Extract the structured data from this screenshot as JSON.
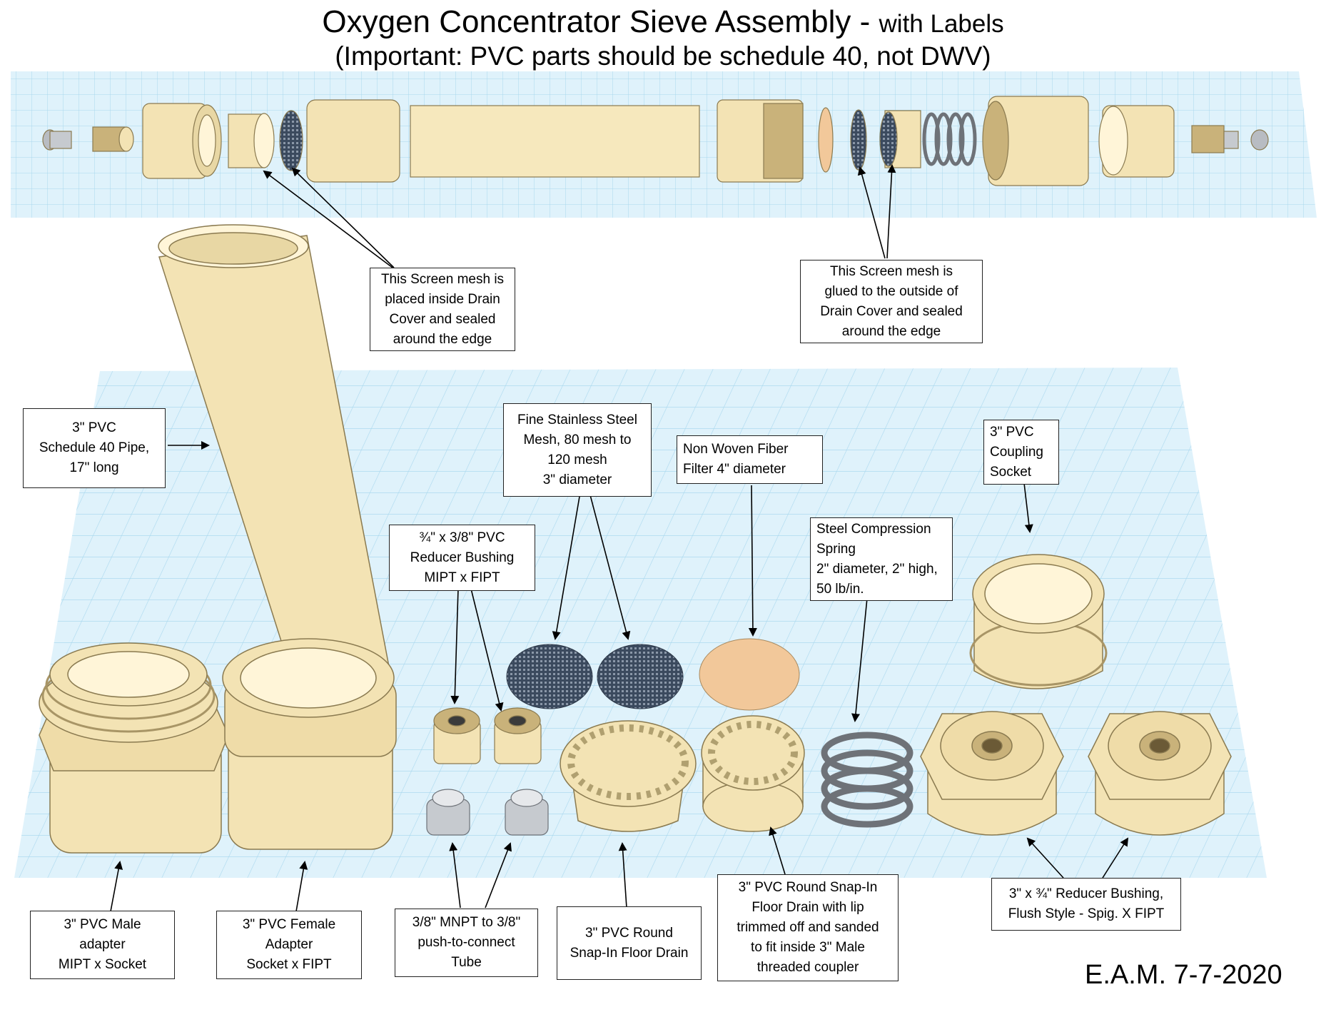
{
  "title": {
    "main": "Oxygen Concentrator Sieve Assembly -",
    "suffix": "with Labels",
    "subtitle": "(Important: PVC parts should be schedule 40, not DWV)"
  },
  "labels": {
    "screen_inside": "This Screen mesh is\nplaced inside Drain\nCover and sealed\naround the edge",
    "screen_outside": "This Screen mesh is\nglued to the outside of\nDrain Cover and sealed\naround the edge",
    "pipe": "3\" PVC\nSchedule 40 Pipe,\n17\" long",
    "mesh": "Fine Stainless Steel\nMesh, 80 mesh to\n120 mesh\n3\" diameter",
    "filter": "Non Woven Fiber\nFilter 4\" diameter",
    "coupling": "3\" PVC\nCoupling\nSocket",
    "reducer_small": "¾\" x 3/8\" PVC\nReducer Bushing\nMIPT x FIPT",
    "spring": "Steel Compression\nSpring\n2\" diameter, 2\" high,\n 50 lb/in.",
    "male_adapter": "3\" PVC Male\nadapter\nMIPT x Socket",
    "female_adapter": "3\" PVC Female\nAdapter\nSocket x FIPT",
    "push_connect": "3/8\" MNPT to 3/8\"\npush-to-connect\nTube",
    "floor_drain": "3\" PVC Round\nSnap-In Floor Drain",
    "floor_drain_trimmed": "3\" PVC Round Snap-In\nFloor Drain with lip\ntrimmed off and sanded\nto fit inside 3\" Male\nthreaded coupler",
    "reducer_bushing": "3\" x ¾\" Reducer Bushing,\nFlush Style - Spig. X FIPT"
  },
  "signature": "E.A.M. 7-7-2020",
  "colors": {
    "pvc": "#f3e3b4",
    "pvc_shade": "#c9b27a",
    "grid": "#a9d8ee",
    "grid_bg": "#d9f0fa",
    "mesh": "#3b4a5e",
    "filter": "#f2c89a",
    "metal": "#b8bcc2"
  }
}
